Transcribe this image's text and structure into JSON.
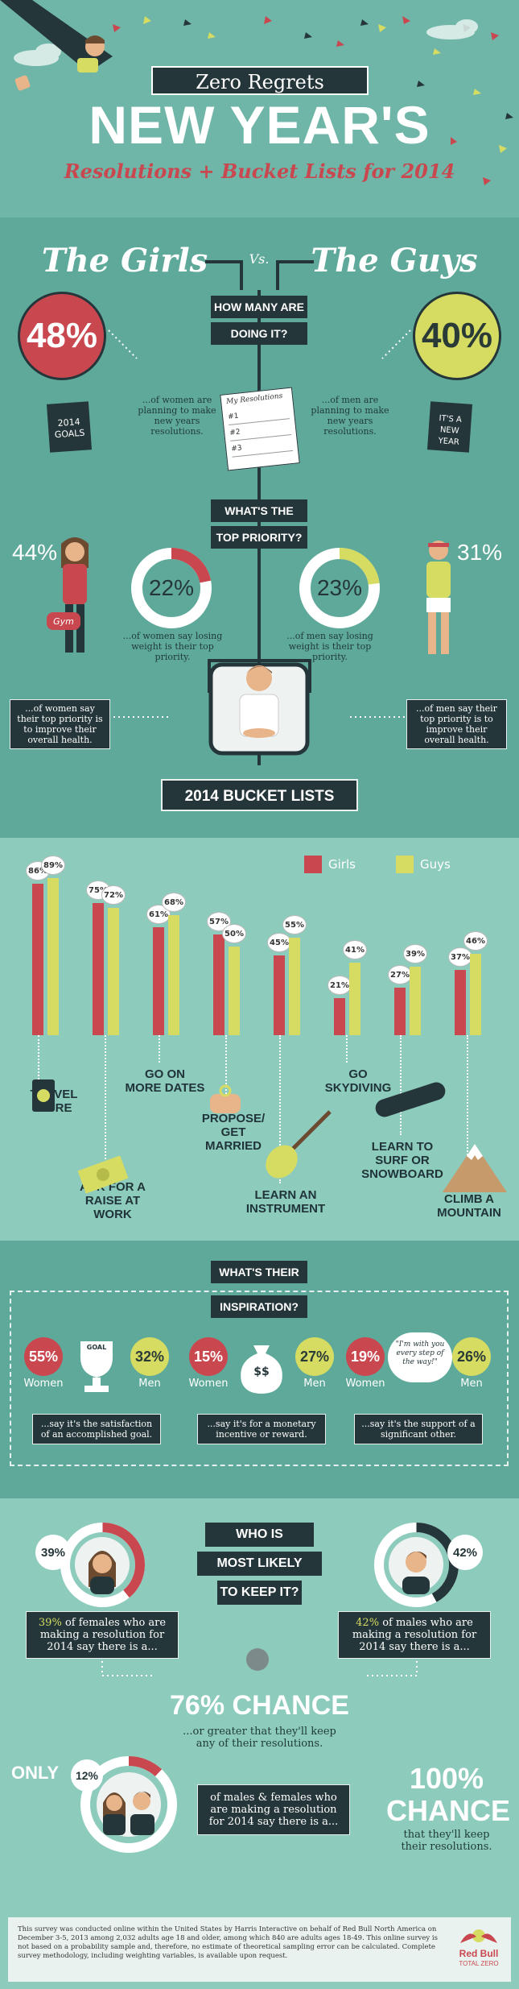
{
  "header": {
    "banner": "Zero Regrets",
    "title": "NEW YEAR'S",
    "subtitle": "Resolutions + Bucket Lists for 2014"
  },
  "vs": {
    "girls": "The Girls",
    "vs": "Vs.",
    "guys": "The Guys"
  },
  "q1": {
    "line1": "HOW MANY ARE",
    "line2": "DOING IT?"
  },
  "doing": {
    "women_pct": "48%",
    "men_pct": "40%",
    "women_text": "...of women are planning to make new years resolutions.",
    "men_text": "...of men are planning to make new years resolutions.",
    "women_book": "2014 GOALS",
    "men_book": "IT'S A NEW YEAR",
    "note_title": "My Resolutions",
    "note_lines": [
      "#1",
      "#2",
      "#3"
    ]
  },
  "q2": {
    "line1": "WHAT'S THE",
    "line2": "TOP PRIORITY?"
  },
  "priority": {
    "women_health_pct": "44%",
    "men_health_pct": "31%",
    "women_weight_pct": "22%",
    "men_weight_pct": "23%",
    "women_weight_value": 22,
    "men_weight_value": 23,
    "women_weight_text": "...of women say losing weight is their top priority.",
    "men_weight_text": "...of men say losing weight is their top priority.",
    "women_health_text": "...of women say their top priority is to improve their overall health.",
    "men_health_text": "...of men say their top priority is to improve their overall health.",
    "gym_bag": "Gym"
  },
  "bucket": {
    "title": "2014 BUCKET LISTS",
    "legend_girls": "Girls",
    "legend_guys": "Guys"
  },
  "chart_data": {
    "type": "bar",
    "categories": [
      "Travel More",
      "Ask For A Raise At Work",
      "Go On More Dates",
      "Propose/Get Married",
      "Learn An Instrument",
      "Go Skydiving",
      "Learn To Surf Or Snowboard",
      "Climb A Mountain"
    ],
    "series": [
      {
        "name": "Girls",
        "values": [
          86,
          75,
          61,
          57,
          45,
          21,
          27,
          37
        ]
      },
      {
        "name": "Guys",
        "values": [
          89,
          72,
          68,
          50,
          55,
          41,
          39,
          46
        ]
      }
    ],
    "ylim": [
      0,
      100
    ],
    "colors": {
      "Girls": "#c9474f",
      "Guys": "#d6dc62"
    }
  },
  "chart_labels": {
    "girls": [
      "86%",
      "75%",
      "61%",
      "57%",
      "45%",
      "21%",
      "27%",
      "37%"
    ],
    "guys": [
      "89%",
      "72%",
      "68%",
      "50%",
      "55%",
      "41%",
      "39%",
      "46%"
    ]
  },
  "bucket_labels": [
    {
      "l1": "TRAVEL",
      "l2": "MORE"
    },
    {
      "l1": "ASK FOR A",
      "l2": "RAISE AT WORK"
    },
    {
      "l1": "GO ON",
      "l2": "MORE DATES"
    },
    {
      "l1": "PROPOSE/",
      "l2": "GET",
      "l3": "MARRIED"
    },
    {
      "l1": "LEARN AN",
      "l2": "INSTRUMENT"
    },
    {
      "l1": "GO",
      "l2": "SKYDIVING"
    },
    {
      "l1": "LEARN TO",
      "l2": "SURF OR",
      "l3": "SNOWBOARD"
    },
    {
      "l1": "CLIMB A",
      "l2": "MOUNTAIN"
    }
  ],
  "bucket_icons": {
    "goal_sign": "GOAL"
  },
  "q3": {
    "line1": "WHAT'S THEIR",
    "line2": "INSPIRATION?"
  },
  "inspiration": [
    {
      "women_pct": "55%",
      "men_pct": "32%",
      "women_label": "Women",
      "men_label": "Men",
      "text": "...say it's the satisfaction of an accomplished goal.",
      "icon_label": "GOAL"
    },
    {
      "women_pct": "15%",
      "men_pct": "27%",
      "women_label": "Women",
      "men_label": "Men",
      "text": "...say it's for a monetary incentive or reward.",
      "icon_label": "$$"
    },
    {
      "women_pct": "19%",
      "men_pct": "26%",
      "women_label": "Women",
      "men_label": "Men",
      "text": "...say it's the support of a significant other.",
      "icon_label": "\"I'm with you every step of the way!\""
    }
  ],
  "q4": {
    "line1": "WHO IS",
    "line2": "MOST LIKELY",
    "line3": "TO KEEP IT?"
  },
  "keep": {
    "female_pct": "39%",
    "male_pct": "42%",
    "female_value": 39,
    "male_value": 42,
    "female_text_pct": "39%",
    "female_text": " of females who are making a resolution for 2014 say there is a...",
    "male_text_pct": "42%",
    "male_text": " of males who are making a resolution for 2014 say there is a...",
    "chance76": "76% CHANCE",
    "chance76_text": "...or greater that they'll keep any of their resolutions.",
    "only": "ONLY",
    "only_pct": "12%",
    "only_value": 12,
    "both_text": "of males & females who are making a resolution for 2014 say there is a...",
    "chance100a": "100%",
    "chance100b": "CHANCE",
    "chance100_text": "that they'll keep their resolutions."
  },
  "footer": {
    "text": "This survey was conducted online within the United States by Harris Interactive on behalf of Red Bull North America on December 3-5, 2013 among 2,032 adults age 18 and older, among which 840 are adults ages 18-49. This online survey is not based on a probability sample and, therefore, no estimate of theoretical sampling error can be calculated. Complete survey methodology, including weighting variables, is available upon request.",
    "brand": "Red Bull",
    "brand_sub": "TOTAL ZERO"
  }
}
